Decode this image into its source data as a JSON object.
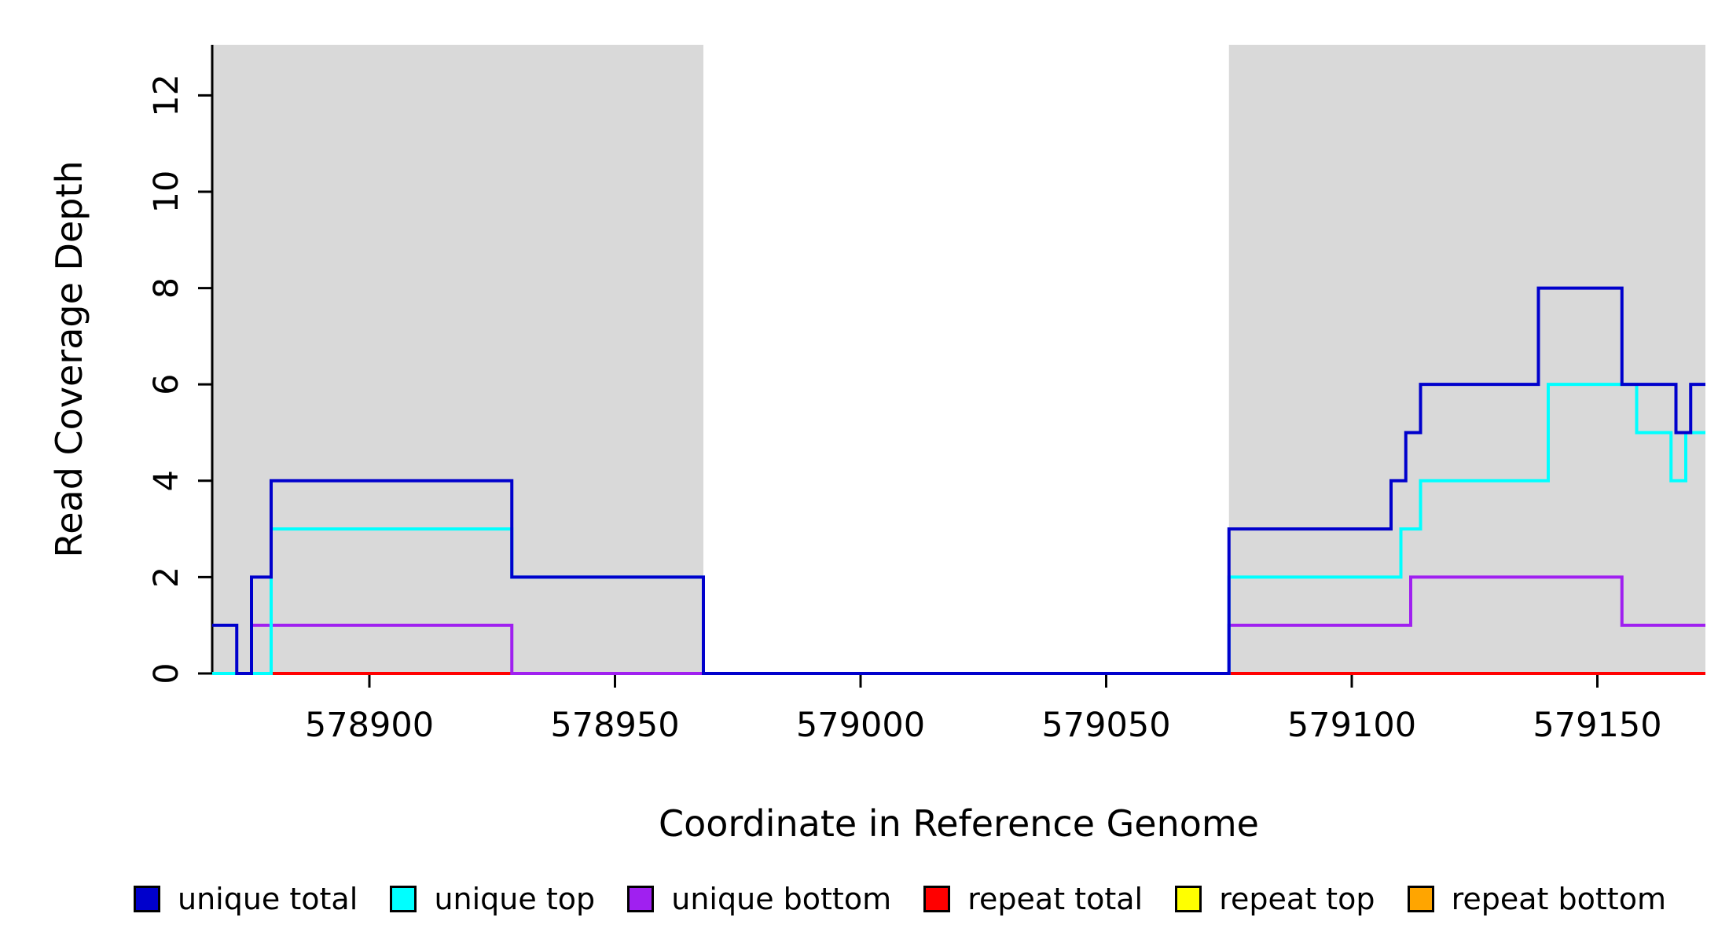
{
  "chart_data": {
    "type": "line",
    "step": true,
    "title": "",
    "xlabel": "Coordinate in Reference Genome",
    "ylabel": "Read Coverage Depth",
    "xlim": [
      578868,
      579172
    ],
    "ylim": [
      0,
      13.05
    ],
    "grid": false,
    "xticks": [
      578900,
      578950,
      579000,
      579050,
      579100,
      579150
    ],
    "yticks": [
      0,
      2,
      4,
      6,
      8,
      10,
      12
    ],
    "shaded_regions": [
      {
        "x0": 578868,
        "x1": 578968,
        "color": "#d9d9d9"
      },
      {
        "x0": 579075,
        "x1": 579172,
        "color": "#d9d9d9"
      }
    ],
    "series": [
      {
        "name": "unique total",
        "color": "#0000cc",
        "points": [
          [
            578868,
            1
          ],
          [
            578873,
            0
          ],
          [
            578876,
            2
          ],
          [
            578880,
            4
          ],
          [
            578929,
            2
          ],
          [
            578968,
            0
          ],
          [
            579075,
            3
          ],
          [
            579108,
            4
          ],
          [
            579111,
            5
          ],
          [
            579114,
            6
          ],
          [
            579138,
            8
          ],
          [
            579155,
            6
          ],
          [
            579166,
            5
          ],
          [
            579169,
            6
          ],
          [
            579172,
            6
          ]
        ]
      },
      {
        "name": "unique top",
        "color": "#00ffff",
        "points": [
          [
            578868,
            0
          ],
          [
            578880,
            3
          ],
          [
            578929,
            2
          ],
          [
            578968,
            0
          ],
          [
            579075,
            2
          ],
          [
            579110,
            3
          ],
          [
            579114,
            4
          ],
          [
            579140,
            6
          ],
          [
            579158,
            5
          ],
          [
            579165,
            4
          ],
          [
            579168,
            5
          ],
          [
            579172,
            5
          ]
        ]
      },
      {
        "name": "unique bottom",
        "color": "#a020f0",
        "points": [
          [
            578868,
            0
          ],
          [
            578876,
            1
          ],
          [
            578929,
            0
          ],
          [
            579075,
            1
          ],
          [
            579112,
            2
          ],
          [
            579155,
            1
          ],
          [
            579172,
            1
          ]
        ]
      },
      {
        "name": "repeat total",
        "color": "#ff0000",
        "points": [
          [
            578868,
            0
          ],
          [
            579172,
            0
          ]
        ]
      },
      {
        "name": "repeat top",
        "color": "#ffff00",
        "points": [
          [
            578868,
            0
          ],
          [
            579172,
            0
          ]
        ]
      },
      {
        "name": "repeat bottom",
        "color": "#ffa500",
        "points": [
          [
            578868,
            0
          ],
          [
            579172,
            0
          ]
        ]
      }
    ],
    "draw_order": [
      "repeat bottom",
      "repeat top",
      "repeat total",
      "unique bottom",
      "unique top",
      "unique total"
    ],
    "legend_position": "bottom"
  },
  "legend": {
    "items": [
      {
        "label": "unique total",
        "color": "#0000cc"
      },
      {
        "label": "unique top",
        "color": "#00ffff"
      },
      {
        "label": "unique bottom",
        "color": "#a020f0"
      },
      {
        "label": "repeat total",
        "color": "#ff0000"
      },
      {
        "label": "repeat top",
        "color": "#ffff00"
      },
      {
        "label": "repeat bottom",
        "color": "#ffa500"
      }
    ]
  }
}
